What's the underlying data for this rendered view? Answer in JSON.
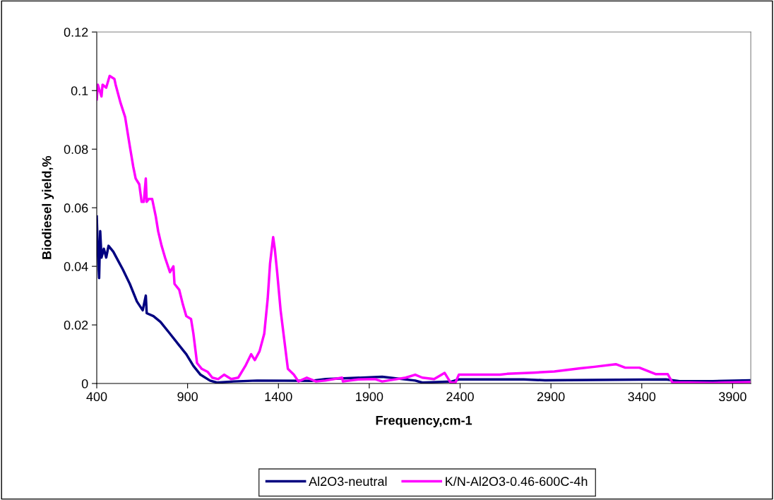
{
  "chart_data": {
    "type": "line",
    "xlabel": "Frequency,cm-1",
    "ylabel": "Biodiesel yield,%",
    "xlim": [
      400,
      4000
    ],
    "xticks": [
      400,
      900,
      1400,
      1900,
      2400,
      2900,
      3400,
      3900
    ],
    "ylim": [
      0,
      0.12
    ],
    "yticks": [
      0,
      0.02,
      0.04,
      0.06,
      0.08,
      0.1,
      0.12
    ],
    "grid": false,
    "legend": "bottom",
    "marker": "none",
    "line_style": "solid",
    "series": [
      {
        "name": "Al2O3-neutral",
        "color": "#000080",
        "x": [
          400,
          406,
          413,
          419,
          426,
          439,
          452,
          465,
          491,
          517,
          543,
          582,
          621,
          653,
          670,
          675,
          712,
          751,
          803,
          854,
          893,
          932,
          971,
          1023,
          1062,
          1153,
          1283,
          1582,
          1660,
          1971,
          2153,
          2192,
          2355,
          2393,
          2750,
          2867,
          3533,
          3608,
          3790,
          4000
        ],
        "values": [
          0.057,
          0.045,
          0.036,
          0.052,
          0.043,
          0.046,
          0.043,
          0.047,
          0.045,
          0.042,
          0.039,
          0.034,
          0.028,
          0.025,
          0.03,
          0.024,
          0.023,
          0.021,
          0.017,
          0.013,
          0.01,
          0.006,
          0.003,
          0.001,
          0.0003,
          0.0007,
          0.001,
          0.0009,
          0.0015,
          0.0023,
          0.001,
          0.0003,
          0.0007,
          0.0014,
          0.0014,
          0.0011,
          0.0014,
          0.0008,
          0.0008,
          0.0011
        ]
      },
      {
        "name": "K/N-Al2O3-0.46-600C-4h",
        "color": "#ff00ff",
        "x": [
          400,
          406,
          426,
          432,
          452,
          471,
          497,
          504,
          530,
          556,
          582,
          601,
          614,
          634,
          647,
          659,
          670,
          675,
          686,
          705,
          725,
          738,
          757,
          776,
          803,
          822,
          828,
          854,
          874,
          893,
          919,
          932,
          952,
          978,
          1010,
          1036,
          1068,
          1101,
          1140,
          1179,
          1218,
          1250,
          1270,
          1296,
          1322,
          1341,
          1354,
          1371,
          1380,
          1393,
          1412,
          1432,
          1452,
          1485,
          1510,
          1556,
          1607,
          1659,
          1750,
          1755,
          1841,
          1932,
          1971,
          2101,
          2153,
          2192,
          2257,
          2315,
          2348,
          2374,
          2393,
          2491,
          2620,
          2659,
          2802,
          2919,
          3062,
          3140,
          3257,
          3309,
          3387,
          3478,
          3543,
          3569,
          3660,
          3790,
          4000
        ],
        "values": [
          0.097,
          0.102,
          0.098,
          0.102,
          0.101,
          0.105,
          0.104,
          0.102,
          0.096,
          0.091,
          0.081,
          0.074,
          0.07,
          0.068,
          0.062,
          0.062,
          0.07,
          0.062,
          0.063,
          0.063,
          0.057,
          0.052,
          0.047,
          0.043,
          0.038,
          0.04,
          0.034,
          0.032,
          0.027,
          0.023,
          0.022,
          0.017,
          0.007,
          0.005,
          0.004,
          0.002,
          0.0015,
          0.003,
          0.0015,
          0.002,
          0.006,
          0.01,
          0.008,
          0.011,
          0.017,
          0.029,
          0.041,
          0.05,
          0.046,
          0.038,
          0.025,
          0.015,
          0.005,
          0.003,
          0.0007,
          0.002,
          0.0007,
          0.001,
          0.002,
          0.0007,
          0.0014,
          0.0015,
          0.0007,
          0.002,
          0.003,
          0.002,
          0.0015,
          0.0036,
          0.0003,
          0.0003,
          0.003,
          0.003,
          0.003,
          0.0033,
          0.0037,
          0.0041,
          0.0052,
          0.0057,
          0.0066,
          0.0054,
          0.0054,
          0.0032,
          0.0032,
          0.0003,
          0.0003,
          0.0002,
          0.0005
        ]
      }
    ]
  }
}
